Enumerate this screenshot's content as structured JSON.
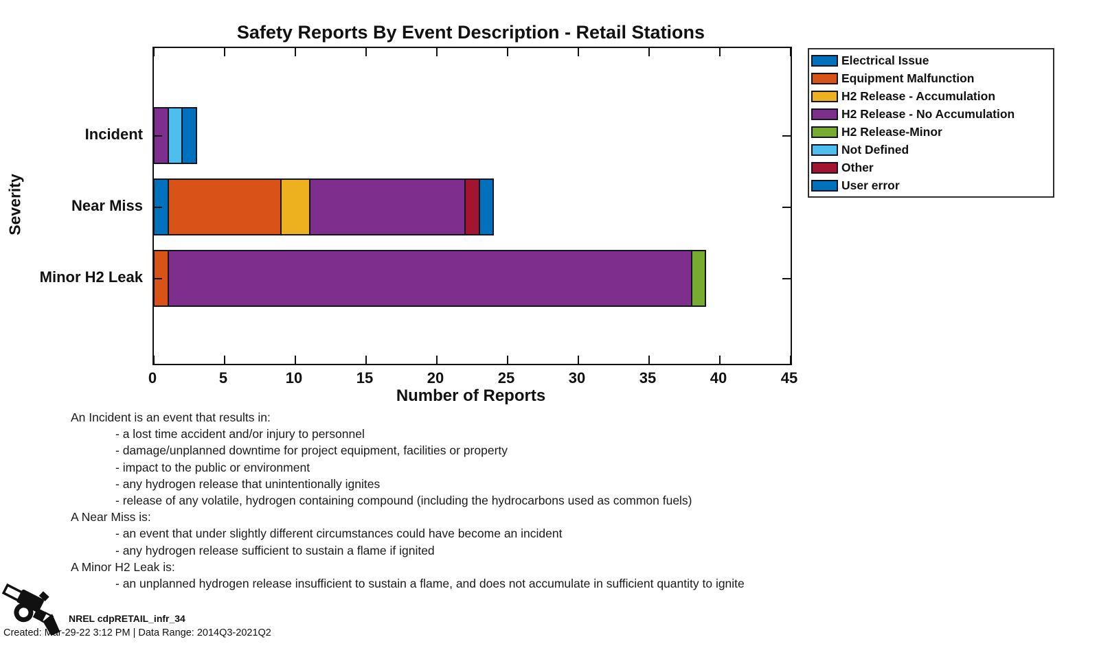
{
  "title": "Safety Reports By Event Description - Retail Stations",
  "chart_data": {
    "type": "bar",
    "orientation": "horizontal",
    "stacked": true,
    "title": "Safety Reports By Event Description - Retail Stations",
    "xlabel": "Number of Reports",
    "ylabel": "Severity",
    "xlim": [
      0,
      45
    ],
    "x_ticks": [
      0,
      5,
      10,
      15,
      20,
      25,
      30,
      35,
      40,
      45
    ],
    "grid": false,
    "legend_position": "outside-upper-right",
    "categories": [
      "Incident",
      "Near Miss",
      "Minor H2 Leak"
    ],
    "series": [
      {
        "name": "Electrical Issue",
        "color": "#0072BD",
        "values": [
          0,
          1,
          0
        ]
      },
      {
        "name": "Equipment Malfunction",
        "color": "#D95319",
        "values": [
          0,
          8,
          1
        ]
      },
      {
        "name": "H2 Release - Accumulation",
        "color": "#EDB120",
        "values": [
          0,
          2,
          0
        ]
      },
      {
        "name": "H2 Release - No Accumulation",
        "color": "#7E2F8E",
        "values": [
          1,
          11,
          37
        ]
      },
      {
        "name": "H2 Release-Minor",
        "color": "#77AC30",
        "values": [
          0,
          0,
          1
        ]
      },
      {
        "name": "Not Defined",
        "color": "#4DBEEE",
        "values": [
          1,
          0,
          0
        ]
      },
      {
        "name": "Other",
        "color": "#A2142F",
        "values": [
          0,
          1,
          0
        ]
      },
      {
        "name": "User error",
        "color": "#0072BD",
        "values": [
          1,
          1,
          0
        ]
      }
    ],
    "category_totals": [
      3,
      24,
      39
    ]
  },
  "definitions": {
    "lines": [
      {
        "indent": 0,
        "text": "An Incident is an event that results in:"
      },
      {
        "indent": 1,
        "text": "- a lost time accident and/or injury to personnel"
      },
      {
        "indent": 1,
        "text": "- damage/unplanned downtime for project equipment, facilities or property"
      },
      {
        "indent": 1,
        "text": "- impact to the public or environment"
      },
      {
        "indent": 1,
        "text": "- any hydrogen release that unintentionally ignites"
      },
      {
        "indent": 1,
        "text": "- release of any volatile, hydrogen containing compound (including the hydrocarbons used as common fuels)"
      },
      {
        "indent": 0,
        "text": "A Near Miss is:"
      },
      {
        "indent": 1,
        "text": "- an event that under slightly different circumstances could have become an incident"
      },
      {
        "indent": 1,
        "text": "- any hydrogen release sufficient to sustain a flame if ignited"
      },
      {
        "indent": 0,
        "text": "A Minor H2 Leak is:"
      },
      {
        "indent": 1,
        "text": "- an unplanned hydrogen release insufficient to sustain a flame, and does not accumulate in sufficient quantity to ignite"
      }
    ]
  },
  "footer": {
    "report_id": "NREL cdpRETAIL_infr_34",
    "created_line": "Created: Mar-29-22  3:12 PM | Data Range: 2014Q3-2021Q2",
    "icon": "fuel-nozzle-icon"
  },
  "colors": {
    "axis": "#111111",
    "bar_edge": "#15151f"
  }
}
